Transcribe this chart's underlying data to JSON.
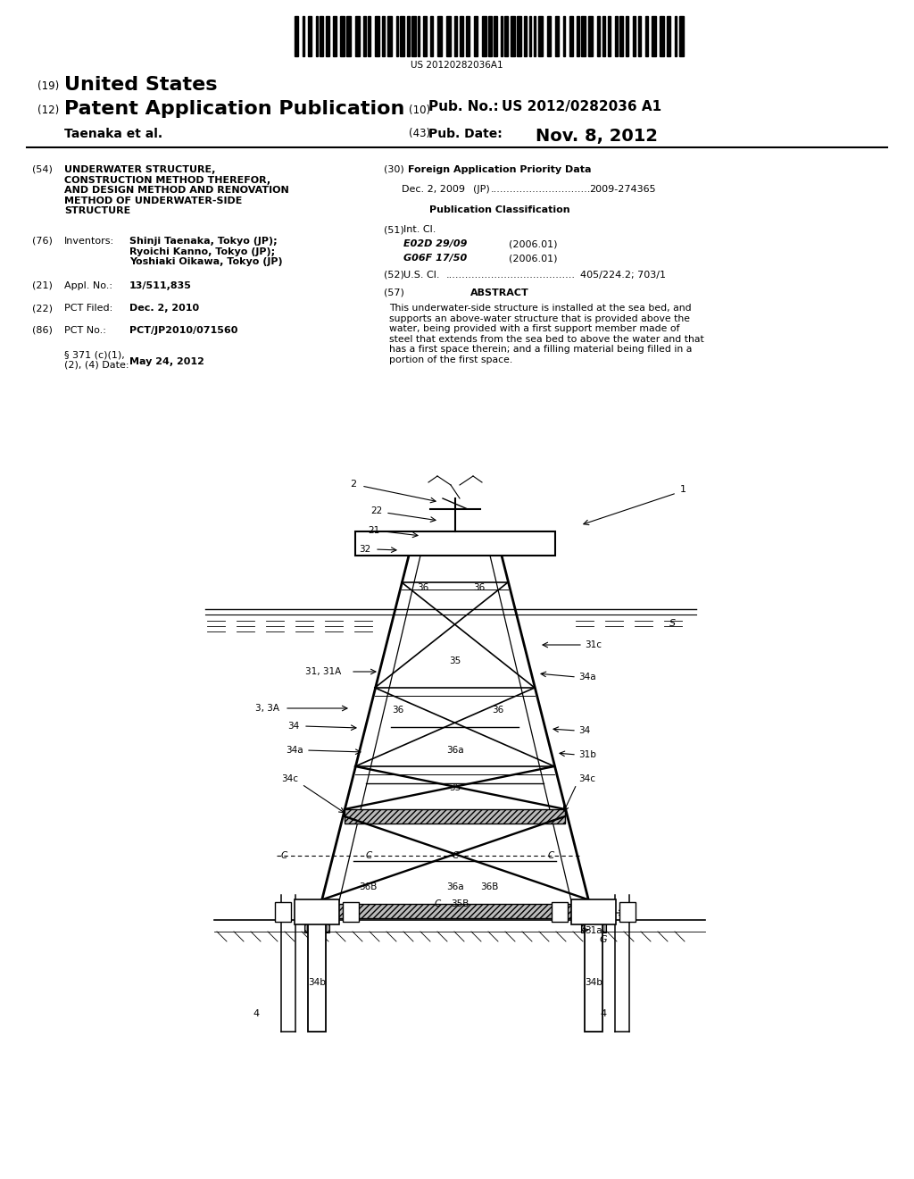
{
  "bg_color": "#ffffff",
  "page_width": 10.24,
  "page_height": 13.2,
  "barcode_text": "US 20120282036A1",
  "header": {
    "number_19": "(19)",
    "united_states": "United States",
    "number_12": "(12)",
    "patent_app": "Patent Application Publication",
    "number_10": "(10)",
    "pub_no_label": "Pub. No.:",
    "pub_no": "US 2012/0282036 A1",
    "taenaka": "Taenaka et al.",
    "number_43": "(43)",
    "pub_date_label": "Pub. Date:",
    "pub_date": "Nov. 8, 2012"
  },
  "left_col": {
    "num54": "(54)",
    "title": "UNDERWATER STRUCTURE,\nCONSTRUCTION METHOD THEREFOR,\nAND DESIGN METHOD AND RENOVATION\nMETHOD OF UNDERWATER-SIDE\nSTRUCTURE",
    "num76": "(76)",
    "inventors_label": "Inventors:",
    "inventors": "Shinji Taenaka, Tokyo (JP);\nRyoichi Kanno, Tokyo (JP);\nYoshiaki Oikawa, Tokyo (JP)",
    "num21": "(21)",
    "appl_no_label": "Appl. No.:",
    "appl_no": "13/511,835",
    "num22": "(22)",
    "pct_filed_label": "PCT Filed:",
    "pct_filed": "Dec. 2, 2010",
    "num86": "(86)",
    "pct_no_label": "PCT No.:",
    "pct_no": "PCT/JP2010/071560",
    "section371": "§ 371 (c)(1),\n(2), (4) Date:",
    "section371_date": "May 24, 2012"
  },
  "right_col": {
    "num30": "(30)",
    "foreign_title": "Foreign Application Priority Data",
    "foreign_data": "Dec. 2, 2009",
    "foreign_jp": "(JP)",
    "foreign_dots": "...............................",
    "foreign_num": "2009-274365",
    "pub_class_title": "Publication Classification",
    "num51": "(51)",
    "intcl_label": "Int. Cl.",
    "intcl1": "E02D 29/09",
    "intcl1_date": "(2006.01)",
    "intcl2": "G06F 17/50",
    "intcl2_date": "(2006.01)",
    "num52": "(52)",
    "uscl_label": "U.S. Cl.",
    "uscl_dots": "........................................",
    "uscl_num": "405/224.2; 703/1",
    "num57": "(57)",
    "abstract_title": "ABSTRACT",
    "abstract_text": "This underwater-side structure is installed at the sea bed, and\nsupports an above-water structure that is provided above the\nwater, being provided with a first support member made of\nsteel that extends from the sea bed to above the water and that\nhas a first space therein; and a filling material being filled in a\nportion of the first space."
  }
}
